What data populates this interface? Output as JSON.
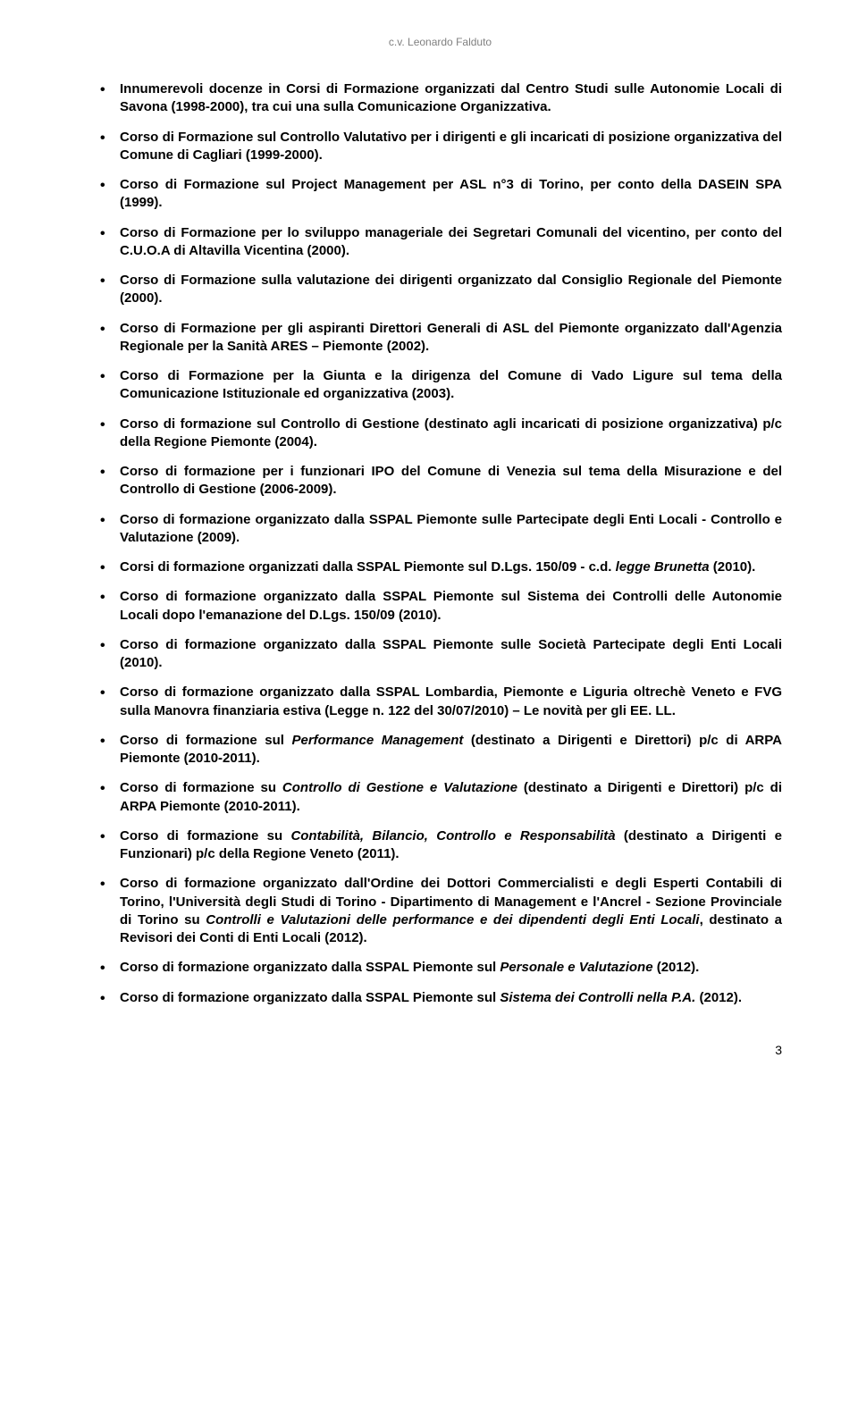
{
  "header": "c.v. Leonardo Falduto",
  "items": [
    {
      "html": "Innumerevoli docenze in Corsi di Formazione organizzati dal Centro Studi sulle Autonomie Locali di Savona (1998-2000), tra cui una sulla Comunicazione Organizzativa."
    },
    {
      "html": "Corso di Formazione sul Controllo Valutativo per i dirigenti e gli incaricati di posizione organizzativa del Comune di Cagliari (1999-2000)."
    },
    {
      "html": "Corso di Formazione sul Project Management per ASL n°3 di Torino, per conto della DASEIN SPA (1999)."
    },
    {
      "html": "Corso di Formazione per lo sviluppo manageriale dei Segretari Comunali del vicentino, per conto del C.U.O.A di Altavilla Vicentina (2000)."
    },
    {
      "html": "Corso di Formazione sulla valutazione dei dirigenti organizzato dal Consiglio Regionale del Piemonte (2000)."
    },
    {
      "html": "Corso di Formazione per gli aspiranti Direttori Generali di ASL del Piemonte organizzato dall'Agenzia Regionale per la Sanità ARES – Piemonte (2002)."
    },
    {
      "html": "Corso di Formazione per la Giunta e la dirigenza del Comune di Vado Ligure sul tema della Comunicazione Istituzionale ed organizzativa (2003)."
    },
    {
      "html": "Corso di formazione sul Controllo di Gestione (destinato agli incaricati di posizione organizzativa) p/c della Regione Piemonte (2004)."
    },
    {
      "html": "Corso di formazione per i funzionari IPO del Comune di Venezia sul tema della Misurazione e del Controllo di Gestione (2006-2009)."
    },
    {
      "html": "Corso di formazione organizzato dalla SSPAL Piemonte sulle Partecipate degli Enti Locali - Controllo e Valutazione (2009)."
    },
    {
      "html": "Corsi di formazione organizzati dalla SSPAL Piemonte sul D.Lgs. 150/09 - c.d. <span class=\"italic\">legge Brunetta</span> (2010)."
    },
    {
      "html": "Corso di formazione organizzato dalla SSPAL Piemonte sul Sistema dei Controlli delle Autonomie Locali dopo l'emanazione del D.Lgs. 150/09 (2010)."
    },
    {
      "html": "Corso di formazione organizzato dalla SSPAL Piemonte sulle Società Partecipate degli Enti Locali (2010)."
    },
    {
      "html": "Corso di formazione organizzato dalla SSPAL Lombardia, Piemonte e Liguria oltrechè Veneto e FVG sulla Manovra finanziaria estiva (Legge n. 122 del 30/07/2010) – Le novità per gli EE. LL."
    },
    {
      "html": "Corso di formazione sul <span class=\"italic\">Performance Management</span> (destinato a Dirigenti e Direttori) p/c di ARPA Piemonte (2010-2011)."
    },
    {
      "html": "Corso di formazione su <span class=\"italic\">Controllo di Gestione e Valutazione</span> (destinato a Dirigenti e Direttori) p/c di ARPA Piemonte (2010-2011)."
    },
    {
      "html": "Corso di formazione su <span class=\"italic\">Contabilità, Bilancio, Controllo e Responsabilità</span> (destinato a Dirigenti e Funzionari) p/c della Regione Veneto (2011)."
    },
    {
      "html": "Corso di formazione organizzato dall'Ordine dei Dottori Commercialisti e degli Esperti Contabili di Torino, l'Università degli Studi di Torino - Dipartimento di Management e l'Ancrel - Sezione Provinciale di Torino su <span class=\"italic\">Controlli e Valutazioni delle performance e dei dipendenti degli Enti Locali</span>, destinato a Revisori dei Conti di Enti Locali (2012)."
    },
    {
      "html": "Corso di formazione organizzato dalla SSPAL Piemonte sul <span class=\"italic\">Personale e Valutazione</span> (2012)."
    },
    {
      "html": "Corso di formazione organizzato dalla SSPAL Piemonte sul <span class=\"italic\">Sistema dei Controlli nella P.A.</span> (2012)."
    }
  ],
  "pageNumber": "3"
}
